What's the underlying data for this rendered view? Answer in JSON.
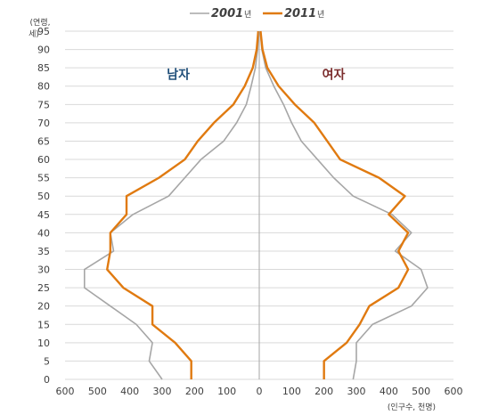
{
  "chart_data": {
    "type": "line",
    "subtype": "population-pyramid",
    "ylabel_lines": [
      "(연령,",
      "세)"
    ],
    "xlabel": "(인구수, 천명)",
    "y_ticks": [
      "0",
      "5",
      "10",
      "15",
      "20",
      "25",
      "30",
      "35",
      "40",
      "45",
      "50",
      "55",
      "60",
      "65",
      "70",
      "75",
      "80",
      "85",
      "90",
      "95"
    ],
    "x_ticks": [
      "600",
      "500",
      "400",
      "300",
      "200",
      "100",
      "0",
      "100",
      "200",
      "300",
      "400",
      "500",
      "600"
    ],
    "xlim": [
      -600,
      600
    ],
    "ylim": [
      0,
      95
    ],
    "grid": "horizontal",
    "legend_position": "top",
    "side_labels": [
      {
        "text": "남자",
        "color": "#1f4e79",
        "x": -250,
        "y": 82
      },
      {
        "text": "여자",
        "color": "#7b2c2c",
        "x": 230,
        "y": 82
      }
    ],
    "series": [
      {
        "name": "2001",
        "name_suffix": "년",
        "color": "#a6a6a6",
        "male": [
          [
            0,
            -300
          ],
          [
            5,
            -340
          ],
          [
            10,
            -330
          ],
          [
            15,
            -380
          ],
          [
            20,
            -460
          ],
          [
            25,
            -540
          ],
          [
            30,
            -540
          ],
          [
            35,
            -450
          ],
          [
            40,
            -460
          ],
          [
            45,
            -390
          ],
          [
            50,
            -280
          ],
          [
            55,
            -230
          ],
          [
            60,
            -180
          ],
          [
            65,
            -110
          ],
          [
            70,
            -70
          ],
          [
            75,
            -40
          ],
          [
            80,
            -25
          ],
          [
            85,
            -12
          ],
          [
            90,
            -5
          ],
          [
            95,
            -2
          ]
        ],
        "female": [
          [
            0,
            290
          ],
          [
            5,
            300
          ],
          [
            10,
            300
          ],
          [
            15,
            350
          ],
          [
            20,
            470
          ],
          [
            25,
            520
          ],
          [
            30,
            500
          ],
          [
            35,
            420
          ],
          [
            40,
            470
          ],
          [
            45,
            410
          ],
          [
            50,
            290
          ],
          [
            55,
            230
          ],
          [
            60,
            180
          ],
          [
            65,
            130
          ],
          [
            70,
            100
          ],
          [
            75,
            75
          ],
          [
            80,
            45
          ],
          [
            85,
            20
          ],
          [
            90,
            8
          ],
          [
            95,
            3
          ]
        ]
      },
      {
        "name": "2011",
        "name_suffix": "년",
        "color": "#e07a10",
        "male": [
          [
            0,
            -210
          ],
          [
            5,
            -210
          ],
          [
            10,
            -260
          ],
          [
            15,
            -330
          ],
          [
            20,
            -330
          ],
          [
            25,
            -420
          ],
          [
            30,
            -470
          ],
          [
            35,
            -460
          ],
          [
            40,
            -460
          ],
          [
            45,
            -410
          ],
          [
            50,
            -410
          ],
          [
            55,
            -310
          ],
          [
            60,
            -230
          ],
          [
            65,
            -190
          ],
          [
            70,
            -140
          ],
          [
            75,
            -80
          ],
          [
            80,
            -45
          ],
          [
            85,
            -20
          ],
          [
            90,
            -8
          ],
          [
            95,
            -3
          ]
        ],
        "female": [
          [
            0,
            200
          ],
          [
            5,
            200
          ],
          [
            10,
            270
          ],
          [
            15,
            310
          ],
          [
            20,
            340
          ],
          [
            25,
            430
          ],
          [
            30,
            460
          ],
          [
            35,
            430
          ],
          [
            40,
            460
          ],
          [
            45,
            400
          ],
          [
            50,
            450
          ],
          [
            55,
            370
          ],
          [
            60,
            250
          ],
          [
            65,
            210
          ],
          [
            70,
            170
          ],
          [
            75,
            110
          ],
          [
            80,
            60
          ],
          [
            85,
            25
          ],
          [
            90,
            10
          ],
          [
            95,
            4
          ]
        ]
      }
    ]
  }
}
